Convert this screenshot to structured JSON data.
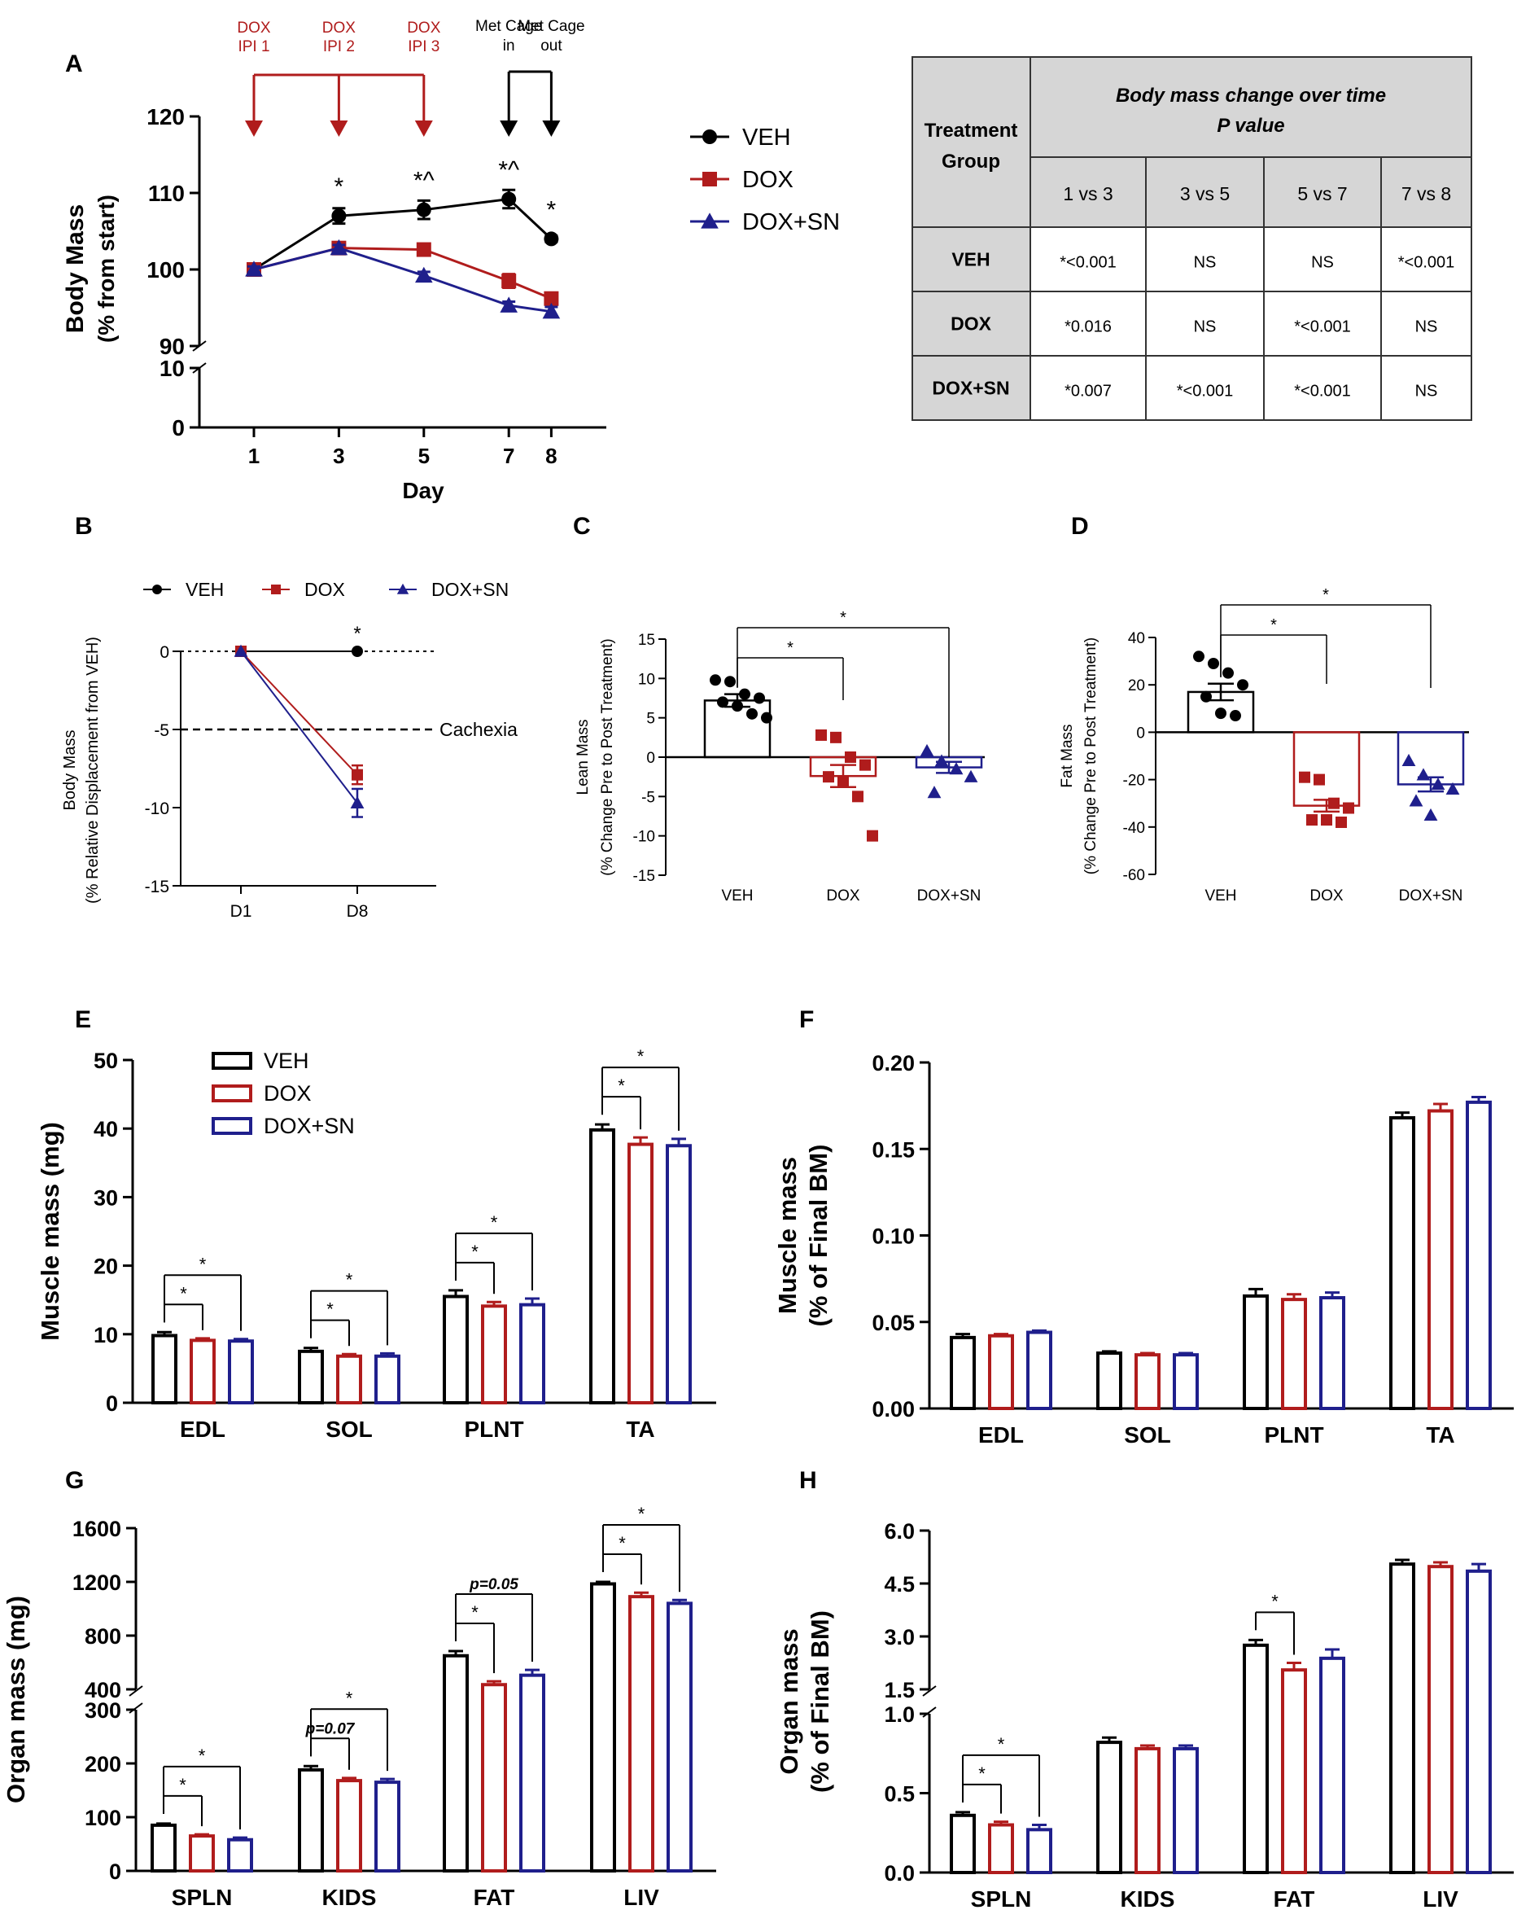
{
  "colors": {
    "veh": "#000000",
    "dox": "#b01c1c",
    "doxsn": "#1f1f8c",
    "table_header": "#d6d6d6",
    "line": "#333333"
  },
  "panel_letters": [
    "A",
    "B",
    "C",
    "D",
    "E",
    "F",
    "G",
    "H"
  ],
  "chart_data": [
    {
      "id": "A",
      "type": "line",
      "xlabel": "Day",
      "ylabel_lines": [
        "Body Mass",
        "(% from start)"
      ],
      "x": [
        1,
        3,
        5,
        7,
        8
      ],
      "x_ticks": [
        "1",
        "3",
        "5",
        "7",
        "8"
      ],
      "y_ticks_upper": [
        "90",
        "100",
        "110",
        "120"
      ],
      "y_ticks_lower": [
        "0",
        "10"
      ],
      "ylim_upper": [
        90,
        120
      ],
      "ylim_lower": [
        0,
        10
      ],
      "series": [
        {
          "name": "VEH",
          "values": [
            100,
            107,
            107.8,
            109.2,
            104
          ],
          "err": [
            0.4,
            1.0,
            1.2,
            1.2,
            0.4
          ]
        },
        {
          "name": "DOX",
          "values": [
            100,
            102.8,
            102.6,
            98.5,
            96.2
          ],
          "err": [
            0.4,
            0.6,
            0.5,
            0.9,
            0.5
          ]
        },
        {
          "name": "DOX+SN",
          "values": [
            100,
            102.8,
            99.2,
            95.3,
            94.5
          ],
          "err": [
            0.4,
            0.4,
            0.5,
            0.5,
            0.6
          ]
        }
      ],
      "point_annotations": [
        {
          "x": 3,
          "text": "*"
        },
        {
          "x": 5,
          "text": "*^"
        },
        {
          "x": 7,
          "text": "*^"
        },
        {
          "x": 8,
          "text": "*"
        }
      ],
      "dosing_labels": [
        {
          "x": 1,
          "lines": [
            "DOX",
            "IPI 1"
          ]
        },
        {
          "x": 3,
          "lines": [
            "DOX",
            "IPI 2"
          ]
        },
        {
          "x": 5,
          "lines": [
            "DOX",
            "IPI 3"
          ]
        }
      ],
      "cage_labels": [
        {
          "x": 7,
          "lines": [
            "Met Cage",
            "in"
          ]
        },
        {
          "x": 8,
          "lines": [
            "Met Cage",
            "out"
          ]
        }
      ]
    },
    {
      "id": "B",
      "type": "line",
      "ylabel_lines": [
        "Body Mass",
        "(% Relative Displacement from VEH)"
      ],
      "categories": [
        "D1",
        "D8"
      ],
      "y_ticks": [
        "0",
        "-5",
        "-10",
        "-15"
      ],
      "ylim": [
        -15,
        0
      ],
      "series": [
        {
          "name": "VEH",
          "values": [
            0,
            0
          ],
          "err": [
            0,
            0
          ]
        },
        {
          "name": "DOX",
          "values": [
            0,
            -7.9
          ],
          "err": [
            0,
            0.6
          ]
        },
        {
          "name": "DOX+SN",
          "values": [
            0,
            -9.7
          ],
          "err": [
            0,
            0.9
          ]
        }
      ],
      "reference_line": {
        "y": -5,
        "label": "Cachexia"
      },
      "point_annotations": [
        {
          "category": "D8",
          "text": "*"
        }
      ]
    },
    {
      "id": "C",
      "type": "bar",
      "ylabel_lines": [
        "Lean Mass",
        "(% Change Pre to Post Treatment)"
      ],
      "categories": [
        "VEH",
        "DOX",
        "DOX+SN"
      ],
      "values": [
        7.2,
        -2.4,
        -1.3
      ],
      "err": [
        0.8,
        1.4,
        0.7
      ],
      "points": [
        [
          9.8,
          9.6,
          8,
          7.5,
          7,
          6.5,
          5.5,
          5
        ],
        [
          2.8,
          2.5,
          0,
          -1,
          -2.5,
          -3,
          -5,
          -10
        ],
        [
          0.8,
          -0.5,
          -1.5,
          -2.5,
          -4.5
        ]
      ],
      "y_ticks": [
        "15",
        "10",
        "5",
        "0",
        "-5",
        "-10",
        "-15"
      ],
      "ylim": [
        -15,
        15
      ],
      "brackets": [
        {
          "from": 0,
          "to": 1,
          "label": "*"
        },
        {
          "from": 0,
          "to": 2,
          "label": "*"
        }
      ]
    },
    {
      "id": "D",
      "type": "bar",
      "ylabel_lines": [
        "Fat Mass",
        "(% Change Pre to Post Treatment)"
      ],
      "categories": [
        "VEH",
        "DOX",
        "DOX+SN"
      ],
      "values": [
        17,
        -31,
        -22
      ],
      "err": [
        3.5,
        2.5,
        3
      ],
      "points": [
        [
          32,
          29,
          25,
          20,
          15,
          8,
          7
        ],
        [
          -19,
          -20,
          -30,
          -32,
          -37,
          -37,
          -38
        ],
        [
          -12,
          -18,
          -22,
          -24,
          -29,
          -35
        ]
      ],
      "y_ticks": [
        "40",
        "20",
        "0",
        "-20",
        "-40",
        "-60"
      ],
      "ylim": [
        -60,
        40
      ],
      "brackets": [
        {
          "from": 0,
          "to": 1,
          "label": "*"
        },
        {
          "from": 0,
          "to": 2,
          "label": "*"
        }
      ]
    },
    {
      "id": "E",
      "type": "bar",
      "ylabel": "Muscle mass (mg)",
      "categories": [
        "EDL",
        "SOL",
        "PLNT",
        "TA"
      ],
      "series": [
        {
          "name": "VEH",
          "values": [
            9.8,
            7.5,
            15.5,
            39.8
          ],
          "err": [
            0.5,
            0.5,
            0.9,
            0.8
          ]
        },
        {
          "name": "DOX",
          "values": [
            9.1,
            6.8,
            14.1,
            37.7
          ],
          "err": [
            0.3,
            0.3,
            0.6,
            1.0
          ]
        },
        {
          "name": "DOX+SN",
          "values": [
            9.0,
            6.8,
            14.3,
            37.5
          ],
          "err": [
            0.3,
            0.4,
            0.9,
            1.0
          ]
        }
      ],
      "y_ticks": [
        "0",
        "10",
        "20",
        "30",
        "40",
        "50"
      ],
      "ylim": [
        0,
        50
      ],
      "brackets": [
        {
          "cat": 0,
          "from": 0,
          "to": 1,
          "label": "*"
        },
        {
          "cat": 0,
          "from": 0,
          "to": 2,
          "label": "*"
        },
        {
          "cat": 1,
          "from": 0,
          "to": 1,
          "label": "*"
        },
        {
          "cat": 1,
          "from": 0,
          "to": 2,
          "label": "*"
        },
        {
          "cat": 2,
          "from": 0,
          "to": 1,
          "label": "*"
        },
        {
          "cat": 2,
          "from": 0,
          "to": 2,
          "label": "*"
        },
        {
          "cat": 3,
          "from": 0,
          "to": 1,
          "label": "*"
        },
        {
          "cat": 3,
          "from": 0,
          "to": 2,
          "label": "*"
        }
      ]
    },
    {
      "id": "F",
      "type": "bar",
      "ylabel_lines": [
        "Muscle mass",
        "(% of Final BM)"
      ],
      "categories": [
        "EDL",
        "SOL",
        "PLNT",
        "TA"
      ],
      "series": [
        {
          "name": "VEH",
          "values": [
            0.041,
            0.032,
            0.065,
            0.168
          ],
          "err": [
            0.002,
            0.001,
            0.004,
            0.003
          ]
        },
        {
          "name": "DOX",
          "values": [
            0.042,
            0.031,
            0.063,
            0.172
          ],
          "err": [
            0.001,
            0.001,
            0.003,
            0.004
          ]
        },
        {
          "name": "DOX+SN",
          "values": [
            0.044,
            0.031,
            0.064,
            0.177
          ],
          "err": [
            0.001,
            0.001,
            0.003,
            0.003
          ]
        }
      ],
      "y_ticks": [
        "0.00",
        "0.05",
        "0.10",
        "0.15",
        "0.20"
      ],
      "ylim": [
        0,
        0.2
      ]
    },
    {
      "id": "G",
      "type": "bar",
      "ylabel": "Organ mass (mg)",
      "categories": [
        "SPLN",
        "KIDS",
        "FAT",
        "LIV"
      ],
      "series": [
        {
          "name": "VEH",
          "values": [
            85,
            188,
            650,
            1185
          ],
          "err": [
            3,
            7,
            35,
            15
          ]
        },
        {
          "name": "DOX",
          "values": [
            65,
            168,
            435,
            1090
          ],
          "err": [
            3,
            5,
            25,
            30
          ]
        },
        {
          "name": "DOX+SN",
          "values": [
            58,
            165,
            505,
            1040
          ],
          "err": [
            4,
            6,
            40,
            25
          ]
        }
      ],
      "y_ticks_lower": [
        "0",
        "100",
        "200",
        "300"
      ],
      "ylim_lower": [
        0,
        300
      ],
      "y_ticks_upper": [
        "400",
        "800",
        "1200",
        "1600"
      ],
      "ylim_upper": [
        400,
        1600
      ],
      "brackets": [
        {
          "cat": 0,
          "from": 0,
          "to": 1,
          "label": "*"
        },
        {
          "cat": 0,
          "from": 0,
          "to": 2,
          "label": "*"
        },
        {
          "cat": 1,
          "from": 0,
          "to": 1,
          "label": "p=0.07"
        },
        {
          "cat": 1,
          "from": 0,
          "to": 2,
          "label": "*"
        },
        {
          "cat": 2,
          "from": 0,
          "to": 1,
          "label": "*"
        },
        {
          "cat": 2,
          "from": 0,
          "to": 2,
          "label": "p=0.05"
        },
        {
          "cat": 3,
          "from": 0,
          "to": 1,
          "label": "*"
        },
        {
          "cat": 3,
          "from": 0,
          "to": 2,
          "label": "*"
        }
      ]
    },
    {
      "id": "H",
      "type": "bar",
      "ylabel_lines": [
        "Organ mass",
        "(% of Final BM)"
      ],
      "categories": [
        "SPLN",
        "KIDS",
        "FAT",
        "LIV"
      ],
      "series": [
        {
          "name": "VEH",
          "values": [
            0.36,
            0.82,
            2.75,
            5.05
          ],
          "err": [
            0.02,
            0.03,
            0.15,
            0.12
          ]
        },
        {
          "name": "DOX",
          "values": [
            0.3,
            0.78,
            2.05,
            4.98
          ],
          "err": [
            0.02,
            0.02,
            0.2,
            0.12
          ]
        },
        {
          "name": "DOX+SN",
          "values": [
            0.27,
            0.78,
            2.38,
            4.85
          ],
          "err": [
            0.03,
            0.02,
            0.25,
            0.2
          ]
        }
      ],
      "y_ticks_lower": [
        "0.0",
        "0.5",
        "1.0"
      ],
      "ylim_lower": [
        0,
        1.0
      ],
      "y_ticks_upper": [
        "1.5",
        "3.0",
        "4.5",
        "6.0"
      ],
      "ylim_upper": [
        1.5,
        6.0
      ],
      "brackets": [
        {
          "cat": 0,
          "from": 0,
          "to": 1,
          "label": "*"
        },
        {
          "cat": 0,
          "from": 0,
          "to": 2,
          "label": "*"
        },
        {
          "cat": 2,
          "from": 0,
          "to": 1,
          "label": "*"
        }
      ]
    }
  ],
  "legend": {
    "names": [
      "VEH",
      "DOX",
      "DOX+SN"
    ]
  },
  "pvalue_table": {
    "title_line1": "Body mass change over time",
    "title_line2": "P value",
    "group_header": [
      "Treatment",
      "Group"
    ],
    "columns": [
      "1 vs 3",
      "3 vs 5",
      "5 vs 7",
      "7 vs 8"
    ],
    "rows": [
      {
        "group": "VEH",
        "cells": [
          "*<0.001",
          "NS",
          "NS",
          "*<0.001"
        ]
      },
      {
        "group": "DOX",
        "cells": [
          "*0.016",
          "NS",
          "*<0.001",
          "NS"
        ]
      },
      {
        "group": "DOX+SN",
        "cells": [
          "*0.007",
          "*<0.001",
          "*<0.001",
          "NS"
        ]
      }
    ]
  }
}
